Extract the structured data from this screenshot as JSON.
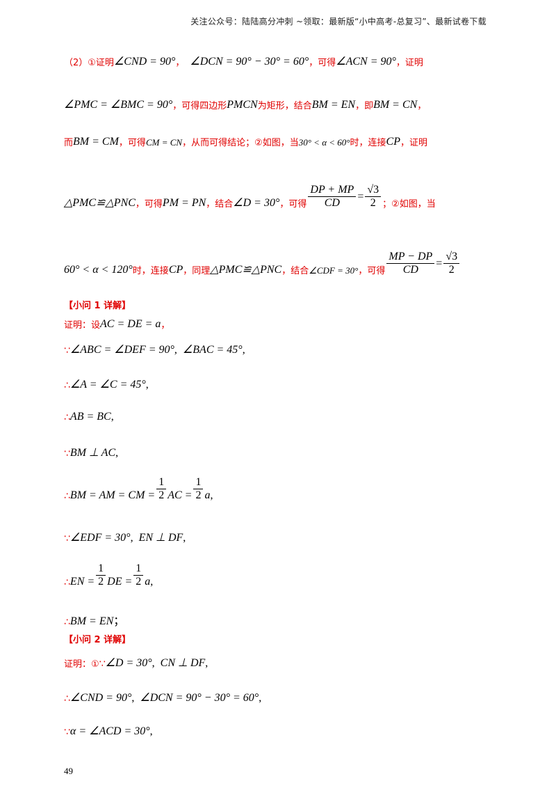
{
  "header": {
    "text": "关注公众号：陆陆高分冲刺  ~领取：最新版“小中高考-总复习”、最新试卷下载"
  },
  "summary": {
    "l1_p1": "（2）①证明",
    "l1_m1": "∠CND = 90°",
    "l1_m2": "∠DCN = 90° − 30° = 60°",
    "l1_p2": "，可得",
    "l1_m3": "∠ACN = 90°",
    "l1_p3": "，证明",
    "l2_m1": "∠PMC = ∠BMC = 90°",
    "l2_p1": "，可得四边形",
    "l2_m2": "PMCN",
    "l2_p2": "为矩形，结合",
    "l2_m3": "BM = EN",
    "l2_p3": "，即",
    "l2_m4": "BM = CN",
    "l3_p1": "而",
    "l3_m1": "BM = CM",
    "l3_p2": "，可得",
    "l3_m2": "CM = CN",
    "l3_p3": "，从而可得结论；②如图，当",
    "l3_m3": "30° < α < 60°",
    "l3_p4": "时，连接",
    "l3_m4": "CP",
    "l3_p5": "，证明",
    "l4_m1": "△PMC≌△PNC",
    "l4_p1": "，可得",
    "l4_m2": "PM = PN",
    "l4_p2": "，结合",
    "l4_m3": "∠D = 30°",
    "l4_p3": "，可得",
    "l4_fn": "DP + MP",
    "l4_fd": "CD",
    "l4_rhs_n": "√3",
    "l4_rhs_d": "2",
    "l4_p4": "；②如图，当",
    "l5_m1": "60° < α < 120°",
    "l5_p1": "时，连接",
    "l5_m2": "CP",
    "l5_p2": "，同理",
    "l5_m3": "△PMC≌△PNC",
    "l5_p3": "，结合",
    "l5_m4": "∠CDF = 30°",
    "l5_p4": "，可得",
    "l5_fn": "MP − DP",
    "l5_fd": "CD",
    "l5_rhs_n": "√3",
    "l5_rhs_d": "2"
  },
  "q1": {
    "heading": "【小问 1 详解】",
    "s1_p": "证明：设",
    "s1_m": "AC = DE = a",
    "s2_m1": "∠ABC = ∠DEF = 90°",
    "s2_m2": "∠BAC = 45°",
    "s3_m": "∠A = ∠C = 45°",
    "s4_m": "AB = BC",
    "s5_m": "BM ⊥ AC",
    "s6_m1": "BM = AM = CM =",
    "s6_fn1": "1",
    "s6_fd1": "2",
    "s6_m2": "AC =",
    "s6_fn2": "1",
    "s6_fd2": "2",
    "s6_m3": "a",
    "s7_m1": "∠EDF = 30°",
    "s7_m2": "EN ⊥ DF",
    "s8_m1": "EN =",
    "s8_fn1": "1",
    "s8_fd1": "2",
    "s8_m2": "DE =",
    "s8_fn2": "1",
    "s8_fd2": "2",
    "s8_m3": "a",
    "s9_m": "BM = EN",
    "s9_end": "；"
  },
  "q2": {
    "heading": "【小问 2 详解】",
    "s1_p": "证明：①",
    "s1_m1": "∠D = 30°",
    "s1_m2": "CN ⊥ DF",
    "s2_m1": "∠CND = 90°",
    "s2_m2": "∠DCN = 90° − 30° = 60°",
    "s3_m": "α = ∠ACD = 30°"
  },
  "symbols": {
    "because": "∵",
    "therefore": "∴",
    "comma": "，",
    "comma_m": ","
  },
  "page_number": "49",
  "colors": {
    "red_text": "#e00000",
    "black_text": "#000000"
  }
}
